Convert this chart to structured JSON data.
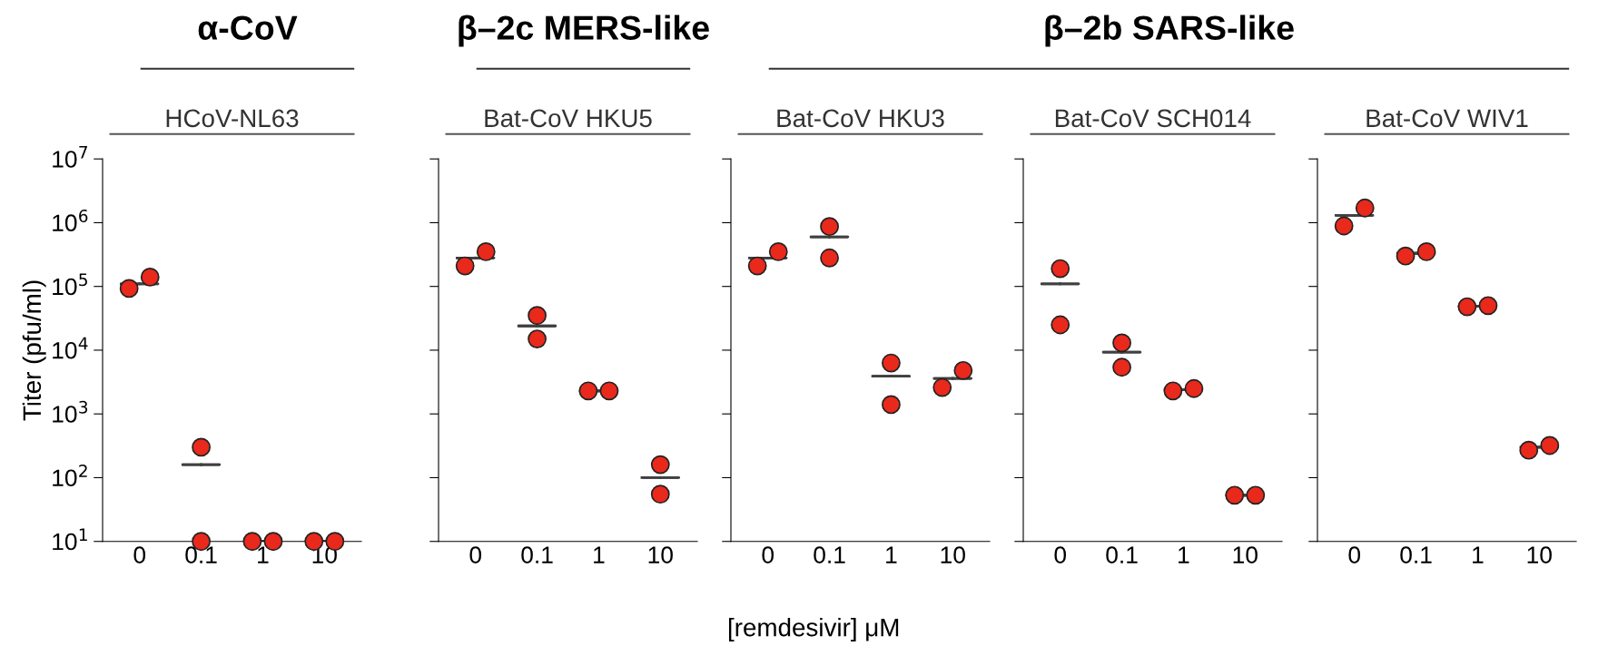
{
  "chart_data": [
    {
      "type": "scatter",
      "title": "HCoV-NL63",
      "annotations": [
        "α-CoV"
      ],
      "ylabel": "Titer (pfu/ml)",
      "categories": [
        "0",
        "0.1",
        "1",
        "10"
      ],
      "log": "y",
      "ylim": [
        10,
        10000000
      ],
      "yticks": [
        {
          "value": 10,
          "label": "10$^{1}$"
        },
        {
          "value": 100,
          "label": "10$^{2}$"
        },
        {
          "value": 1000,
          "label": "10$^{3}$"
        },
        {
          "value": 10000,
          "label": "10$^{4}$"
        },
        {
          "value": 100000,
          "label": "10$^{5}$"
        },
        {
          "value": 1000000,
          "label": "10$^{6}$"
        },
        {
          "value": 10000000,
          "label": "10$^{7}$"
        }
      ],
      "marker": "circle",
      "series": [
        {
          "color": "#e8291c",
          "x": [
            "0",
            "0.1",
            "1",
            "10"
          ],
          "values": [
            93000,
            300,
            10,
            10
          ]
        },
        {
          "color": "#e8291c",
          "x": [
            "0",
            "0.1",
            "1",
            "10"
          ],
          "values": [
            140000,
            10,
            10,
            10
          ]
        },
        {
          "type": "box",
          "color": "#404040",
          "boxes": [
            {
              "low": 110000,
              "q1": 110000,
              "median": 110000,
              "q3": 110000,
              "high": 110000
            },
            {
              "low": 160,
              "q1": 160,
              "median": 160,
              "q3": 160,
              "high": 160
            },
            {
              "low": 10,
              "q1": 10,
              "median": 10,
              "q3": 10,
              "high": 10
            },
            {
              "low": 10,
              "q1": 10,
              "median": 10,
              "q3": 10,
              "high": 10
            }
          ]
        }
      ]
    },
    {
      "type": "scatter",
      "title": "Bat-CoV HKU5",
      "annotations": [
        "β–2c MERS-like"
      ],
      "categories": [
        "0",
        "0.1",
        "1",
        "10"
      ],
      "log": "y",
      "ylim": [
        10,
        10000000
      ],
      "yticks": [
        {
          "value": 10,
          "label": null
        },
        {
          "value": 100,
          "label": null
        },
        {
          "value": 1000,
          "label": null
        },
        {
          "value": 10000,
          "label": null
        },
        {
          "value": 100000,
          "label": null
        },
        {
          "value": 1000000,
          "label": null
        },
        {
          "value": 10000000,
          "label": null
        }
      ],
      "tick_labels": "x",
      "marker": "circle",
      "series": [
        {
          "color": "#e8291c",
          "x": [
            "0",
            "0.1",
            "1",
            "10"
          ],
          "values": [
            210000,
            35000,
            2300,
            160
          ]
        },
        {
          "color": "#e8291c",
          "x": [
            "0",
            "0.1",
            "1",
            "10"
          ],
          "values": [
            350000,
            15000,
            2300,
            55
          ]
        },
        {
          "type": "box",
          "color": "#404040",
          "boxes": [
            {
              "low": 280000,
              "q1": 280000,
              "median": 280000,
              "q3": 280000,
              "high": 280000
            },
            {
              "low": 24000,
              "q1": 24000,
              "median": 24000,
              "q3": 24000,
              "high": 24000
            },
            {
              "low": 2300,
              "q1": 2300,
              "median": 2300,
              "q3": 2300,
              "high": 2300
            },
            {
              "low": 100,
              "q1": 100,
              "median": 100,
              "q3": 100,
              "high": 100
            }
          ]
        }
      ]
    },
    {
      "type": "scatter",
      "title": "Bat-CoV HKU3",
      "annotations": [
        "β–2b SARS-like"
      ],
      "xlabel": "[remdesivir] μM",
      "categories": [
        "0",
        "0.1",
        "1",
        "10"
      ],
      "log": "y",
      "ylim": [
        10,
        10000000
      ],
      "yticks": [
        {
          "value": 10,
          "label": null
        },
        {
          "value": 100,
          "label": null
        },
        {
          "value": 1000,
          "label": null
        },
        {
          "value": 10000,
          "label": null
        },
        {
          "value": 100000,
          "label": null
        },
        {
          "value": 1000000,
          "label": null
        },
        {
          "value": 10000000,
          "label": null
        }
      ],
      "tick_labels": "x",
      "marker": "circle",
      "series": [
        {
          "color": "#e8291c",
          "x": [
            "0",
            "0.1",
            "1",
            "10"
          ],
          "values": [
            210000,
            870000,
            6300,
            2600
          ]
        },
        {
          "color": "#e8291c",
          "x": [
            "0",
            "0.1",
            "1",
            "10"
          ],
          "values": [
            350000,
            280000,
            1400,
            4800
          ]
        },
        {
          "type": "box",
          "color": "#404040",
          "boxes": [
            {
              "low": 280000,
              "q1": 280000,
              "median": 280000,
              "q3": 280000,
              "high": 280000
            },
            {
              "low": 600000,
              "q1": 600000,
              "median": 600000,
              "q3": 600000,
              "high": 600000
            },
            {
              "low": 3900,
              "q1": 3900,
              "median": 3900,
              "q3": 3900,
              "high": 3900
            },
            {
              "low": 3600,
              "q1": 3600,
              "median": 3600,
              "q3": 3600,
              "high": 3600
            }
          ]
        }
      ]
    },
    {
      "type": "scatter",
      "title": "Bat-CoV SCH014",
      "categories": [
        "0",
        "0.1",
        "1",
        "10"
      ],
      "log": "y",
      "ylim": [
        10,
        10000000
      ],
      "yticks": [
        {
          "value": 10,
          "label": null
        },
        {
          "value": 100,
          "label": null
        },
        {
          "value": 1000,
          "label": null
        },
        {
          "value": 10000,
          "label": null
        },
        {
          "value": 100000,
          "label": null
        },
        {
          "value": 1000000,
          "label": null
        },
        {
          "value": 10000000,
          "label": null
        }
      ],
      "tick_labels": "x",
      "marker": "circle",
      "series": [
        {
          "color": "#e8291c",
          "x": [
            "0",
            "0.1",
            "1",
            "10"
          ],
          "values": [
            190000,
            13000,
            2300,
            53
          ]
        },
        {
          "color": "#e8291c",
          "x": [
            "0",
            "0.1",
            "1",
            "10"
          ],
          "values": [
            25000,
            5400,
            2500,
            53
          ]
        },
        {
          "type": "box",
          "color": "#404040",
          "boxes": [
            {
              "low": 110000,
              "q1": 110000,
              "median": 110000,
              "q3": 110000,
              "high": 110000
            },
            {
              "low": 9300,
              "q1": 9300,
              "median": 9300,
              "q3": 9300,
              "high": 9300
            },
            {
              "low": 2400,
              "q1": 2400,
              "median": 2400,
              "q3": 2400,
              "high": 2400
            },
            {
              "low": 53,
              "q1": 53,
              "median": 53,
              "q3": 53,
              "high": 53
            }
          ]
        }
      ]
    },
    {
      "type": "scatter",
      "title": "Bat-CoV WIV1",
      "categories": [
        "0",
        "0.1",
        "1",
        "10"
      ],
      "log": "y",
      "ylim": [
        10,
        10000000
      ],
      "yticks": [
        {
          "value": 10,
          "label": null
        },
        {
          "value": 100,
          "label": null
        },
        {
          "value": 1000,
          "label": null
        },
        {
          "value": 10000,
          "label": null
        },
        {
          "value": 100000,
          "label": null
        },
        {
          "value": 1000000,
          "label": null
        },
        {
          "value": 10000000,
          "label": null
        }
      ],
      "tick_labels": "x",
      "marker": "circle",
      "series": [
        {
          "color": "#e8291c",
          "x": [
            "0",
            "0.1",
            "1",
            "10"
          ],
          "values": [
            890000,
            300000,
            48000,
            270
          ]
        },
        {
          "color": "#e8291c",
          "x": [
            "0",
            "0.1",
            "1",
            "10"
          ],
          "values": [
            1700000,
            350000,
            50000,
            320
          ]
        },
        {
          "type": "box",
          "color": "#404040",
          "boxes": [
            {
              "low": 1300000,
              "q1": 1300000,
              "median": 1300000,
              "q3": 1300000,
              "high": 1300000
            },
            {
              "low": 330000,
              "q1": 330000,
              "median": 330000,
              "q3": 330000,
              "high": 330000
            },
            {
              "low": 49000,
              "q1": 49000,
              "median": 49000,
              "q3": 49000,
              "high": 49000
            },
            {
              "low": 300,
              "q1": 300,
              "median": 300,
              "q3": 300,
              "high": 300
            }
          ]
        }
      ]
    }
  ]
}
